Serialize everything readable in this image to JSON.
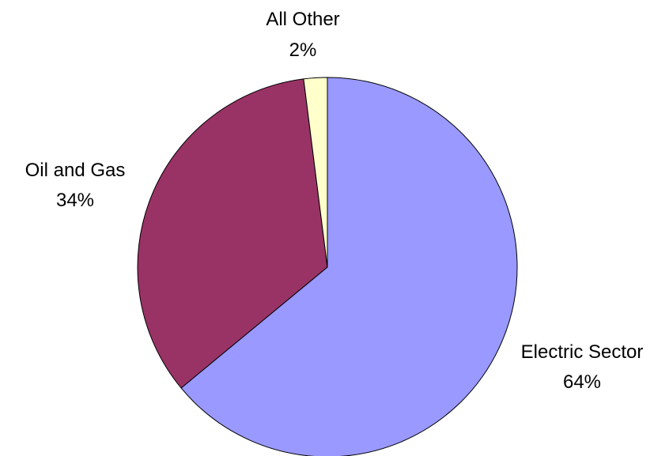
{
  "chart_data": {
    "type": "pie",
    "title": "",
    "slices": [
      {
        "label": "Electric Sector",
        "value": 64,
        "value_label": "64%",
        "color": "#9999ff"
      },
      {
        "label": "Oil and Gas",
        "value": 34,
        "value_label": "34%",
        "color": "#993366"
      },
      {
        "label": "All Other",
        "value": 2,
        "value_label": "2%",
        "color": "#ffffcc"
      }
    ],
    "start": "12 o'clock",
    "direction": "clockwise",
    "legend": "none",
    "border_color": "#000000"
  }
}
